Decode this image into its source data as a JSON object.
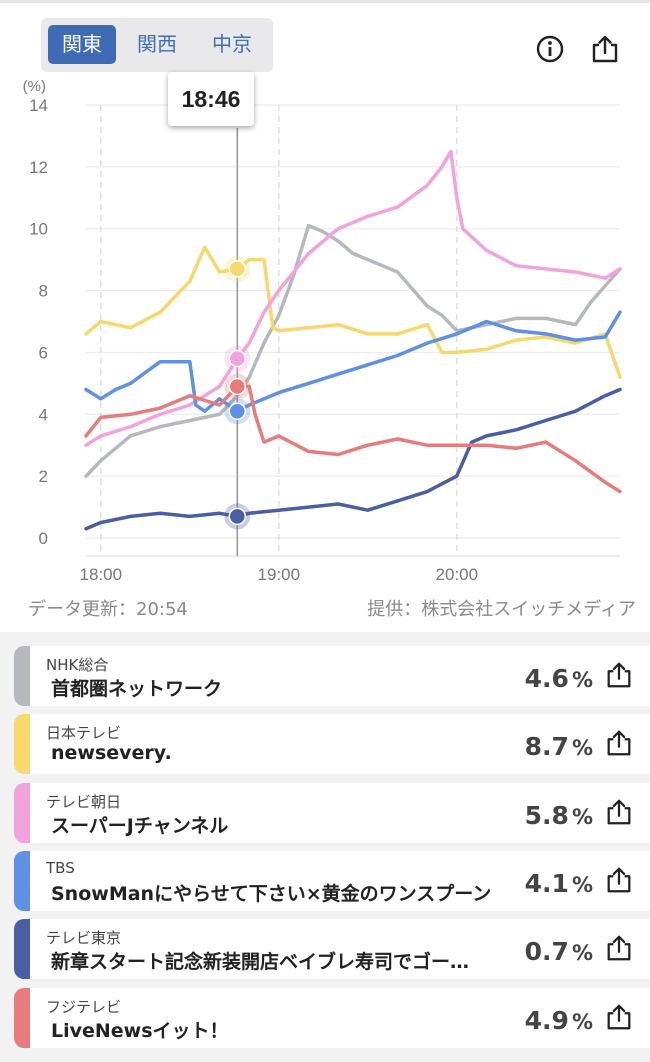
{
  "regions": [
    "関東",
    "関西",
    "中京"
  ],
  "active_region": "関東",
  "icons": {
    "info": "info-icon",
    "share": "share-icon"
  },
  "cursor_time": "18:46",
  "update_text": "データ更新：20:54",
  "credit_text": "提供：株式会社スイッチメディア",
  "chart_data": {
    "type": "line",
    "y_unit": "(%)",
    "ylim": [
      0,
      14
    ],
    "yticks": [
      "0",
      "2",
      "4",
      "6",
      "8",
      "10",
      "12",
      "14"
    ],
    "x_range": [
      "17:55",
      "20:55"
    ],
    "xticks": [
      "18:00",
      "19:00",
      "20:00"
    ],
    "cursor": "18:46",
    "series": [
      {
        "name": "NHK総合",
        "color": "#b5b8bf",
        "x": [
          "17:55",
          "18:00",
          "18:10",
          "18:20",
          "18:30",
          "18:40",
          "18:46",
          "18:50",
          "18:55",
          "19:00",
          "19:05",
          "19:10",
          "19:15",
          "19:20",
          "19:25",
          "19:30",
          "19:40",
          "19:50",
          "19:55",
          "20:00",
          "20:10",
          "20:20",
          "20:30",
          "20:40",
          "20:45",
          "20:55"
        ],
        "y": [
          2.0,
          2.5,
          3.3,
          3.6,
          3.8,
          4.0,
          4.6,
          5.2,
          6.3,
          7.2,
          8.5,
          10.1,
          9.9,
          9.6,
          9.2,
          9.0,
          8.6,
          7.5,
          7.2,
          6.7,
          6.9,
          7.1,
          7.1,
          6.9,
          7.6,
          8.7
        ]
      },
      {
        "name": "日本テレビ",
        "color": "#f6d86c",
        "x": [
          "17:55",
          "18:00",
          "18:10",
          "18:20",
          "18:30",
          "18:35",
          "18:40",
          "18:46",
          "18:50",
          "18:55",
          "18:58",
          "19:00",
          "19:10",
          "19:20",
          "19:30",
          "19:40",
          "19:50",
          "19:55",
          "20:00",
          "20:10",
          "20:20",
          "20:30",
          "20:40",
          "20:50",
          "20:55"
        ],
        "y": [
          6.6,
          7.0,
          6.8,
          7.3,
          8.3,
          9.4,
          8.6,
          8.7,
          9.0,
          9.0,
          6.8,
          6.7,
          6.8,
          6.9,
          6.6,
          6.6,
          6.9,
          6.0,
          6.0,
          6.1,
          6.4,
          6.5,
          6.3,
          6.6,
          5.2
        ]
      },
      {
        "name": "テレビ朝日",
        "color": "#f2a2dc",
        "x": [
          "17:55",
          "18:00",
          "18:10",
          "18:20",
          "18:30",
          "18:40",
          "18:46",
          "18:50",
          "18:55",
          "19:00",
          "19:10",
          "19:20",
          "19:30",
          "19:40",
          "19:50",
          "19:55",
          "19:58",
          "20:00",
          "20:02",
          "20:10",
          "20:20",
          "20:30",
          "20:40",
          "20:50",
          "20:55"
        ],
        "y": [
          3.0,
          3.3,
          3.6,
          4.0,
          4.3,
          4.9,
          5.8,
          6.3,
          7.3,
          8.0,
          9.2,
          10.0,
          10.4,
          10.7,
          11.4,
          12.0,
          12.5,
          11.0,
          10.0,
          9.3,
          8.8,
          8.7,
          8.6,
          8.4,
          8.7
        ]
      },
      {
        "name": "TBS",
        "color": "#5f90e6",
        "x": [
          "17:55",
          "18:00",
          "18:05",
          "18:10",
          "18:20",
          "18:25",
          "18:30",
          "18:32",
          "18:35",
          "18:40",
          "18:46",
          "18:50",
          "19:00",
          "19:10",
          "19:20",
          "19:30",
          "19:40",
          "19:50",
          "20:00",
          "20:10",
          "20:20",
          "20:30",
          "20:40",
          "20:50",
          "20:55"
        ],
        "y": [
          4.8,
          4.5,
          4.8,
          5.0,
          5.7,
          5.7,
          5.7,
          4.3,
          4.1,
          4.5,
          4.1,
          4.3,
          4.7,
          5.0,
          5.3,
          5.6,
          5.9,
          6.3,
          6.6,
          7.0,
          6.7,
          6.6,
          6.4,
          6.5,
          7.3
        ]
      },
      {
        "name": "テレビ東京",
        "color": "#4a5ea3",
        "x": [
          "17:55",
          "18:00",
          "18:10",
          "18:20",
          "18:30",
          "18:40",
          "18:46",
          "18:50",
          "19:00",
          "19:10",
          "19:20",
          "19:30",
          "19:40",
          "19:50",
          "20:00",
          "20:05",
          "20:10",
          "20:20",
          "20:30",
          "20:40",
          "20:50",
          "20:55"
        ],
        "y": [
          0.3,
          0.5,
          0.7,
          0.8,
          0.7,
          0.8,
          0.7,
          0.8,
          0.9,
          1.0,
          1.1,
          0.9,
          1.2,
          1.5,
          2.0,
          3.1,
          3.3,
          3.5,
          3.8,
          4.1,
          4.6,
          4.8
        ]
      },
      {
        "name": "フジテレビ",
        "color": "#e87b7b",
        "x": [
          "17:55",
          "18:00",
          "18:10",
          "18:20",
          "18:30",
          "18:40",
          "18:46",
          "18:50",
          "18:52",
          "18:55",
          "19:00",
          "19:10",
          "19:20",
          "19:30",
          "19:40",
          "19:50",
          "20:00",
          "20:10",
          "20:20",
          "20:30",
          "20:40",
          "20:50",
          "20:55"
        ],
        "y": [
          3.3,
          3.9,
          4.0,
          4.2,
          4.6,
          4.3,
          4.9,
          4.9,
          4.0,
          3.1,
          3.3,
          2.8,
          2.7,
          3.0,
          3.2,
          3.0,
          3.0,
          3.0,
          2.9,
          3.1,
          2.5,
          1.8,
          1.5
        ]
      }
    ],
    "cursor_points": [
      {
        "series": "日本テレビ",
        "y": 8.7
      },
      {
        "series": "テレビ朝日",
        "y": 5.8
      },
      {
        "series": "フジテレビ",
        "y": 4.9
      },
      {
        "series": "TBS",
        "y": 4.1
      },
      {
        "series": "テレビ東京",
        "y": 0.7
      }
    ]
  },
  "channels": [
    {
      "channel": "NHK総合",
      "program": "首都圏ネットワーク",
      "rating": "4.6",
      "unit": "%",
      "color": "#b5b8bf"
    },
    {
      "channel": "日本テレビ",
      "program": "newsevery.",
      "rating": "8.7",
      "unit": "%",
      "color": "#f6d86c"
    },
    {
      "channel": "テレビ朝日",
      "program": "スーパーJチャンネル",
      "rating": "5.8",
      "unit": "%",
      "color": "#f2a2dc"
    },
    {
      "channel": "TBS",
      "program": "SnowManにやらせて下さい×黄金のワンスプーン",
      "rating": "4.1",
      "unit": "%",
      "color": "#5f90e6"
    },
    {
      "channel": "テレビ東京",
      "program": "新章スタート記念新装開店ベイブレ寿司でゴー…",
      "rating": "0.7",
      "unit": "%",
      "color": "#4a5ea3"
    },
    {
      "channel": "フジテレビ",
      "program": "LiveNewsイット！",
      "rating": "4.9",
      "unit": "%",
      "color": "#e87b7b"
    }
  ]
}
